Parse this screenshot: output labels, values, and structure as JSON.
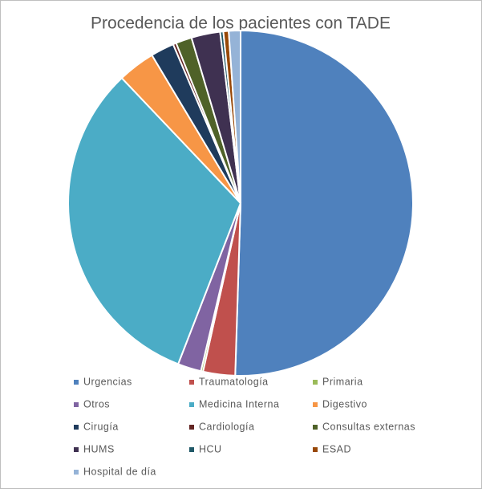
{
  "chart_data": {
    "type": "pie",
    "title": "Procedencia de los pacientes con TADE",
    "categories": [
      "Urgencias",
      "Traumatología",
      "Primaria",
      "Otros",
      "Medicina Interna",
      "Digestivo",
      "Cirugía",
      "Cardiología",
      "Consultas externas",
      "HUMS",
      "HCU",
      "ESAD",
      "Hospital de día"
    ],
    "values": [
      50.5,
      3,
      0.2,
      2.2,
      32,
      3.5,
      2.2,
      0.3,
      1.5,
      2.7,
      0.3,
      0.5,
      1.1
    ],
    "colors": [
      "#4f81bd",
      "#c0504d",
      "#9bbb59",
      "#8064a2",
      "#4bacc6",
      "#f79646",
      "#1f3b5c",
      "#632523",
      "#4f6228",
      "#3f3151",
      "#215968",
      "#984807",
      "#95b3d7"
    ]
  }
}
